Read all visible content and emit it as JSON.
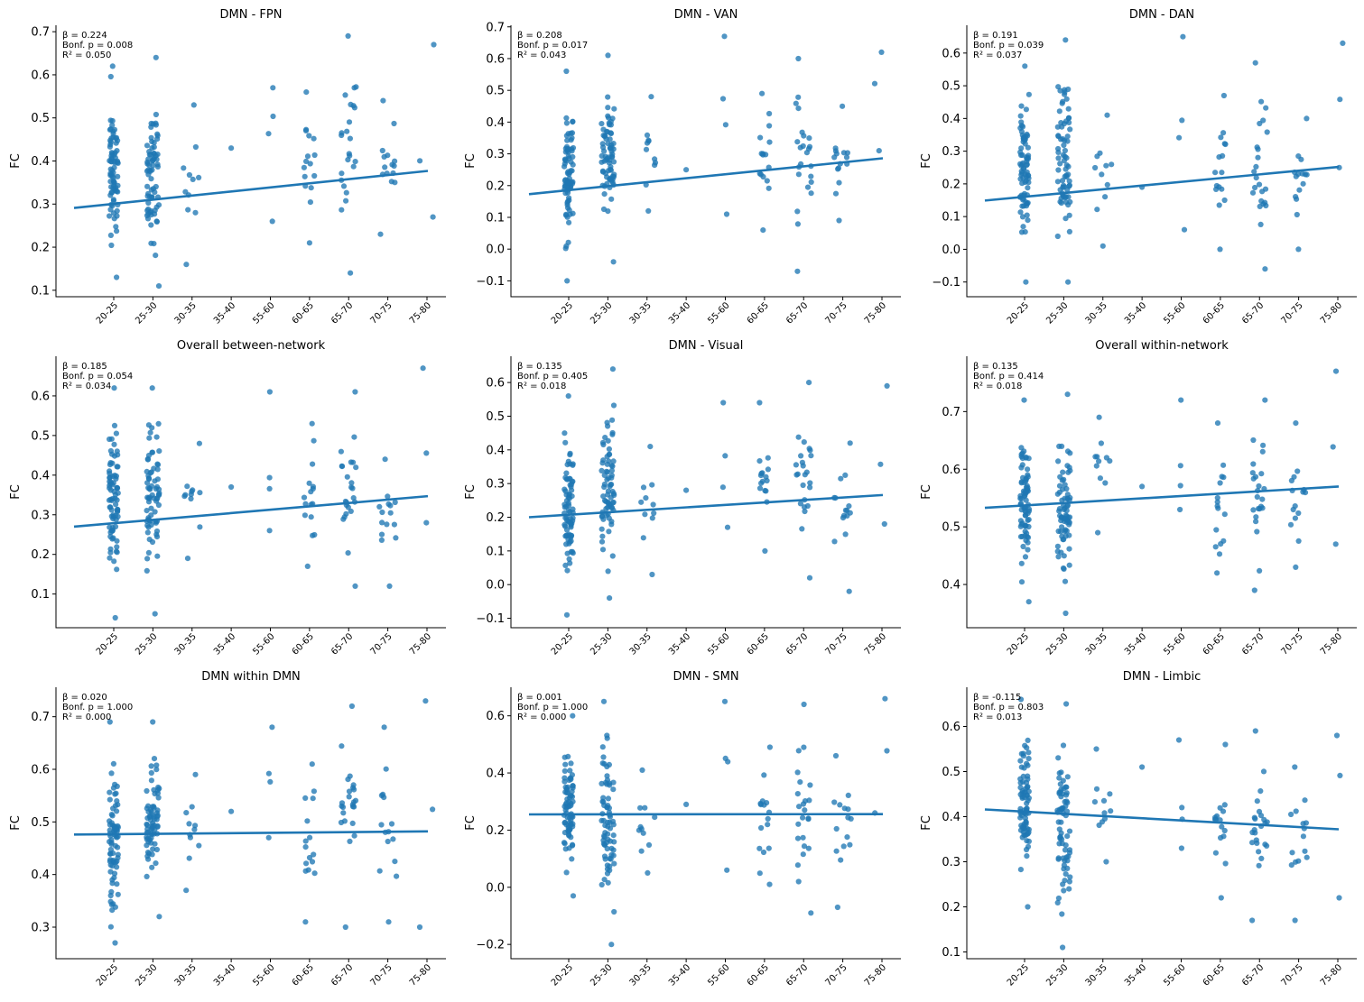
{
  "chart_data": [
    {
      "type": "scatter",
      "title": "DMN - FPN",
      "xlabel": "",
      "ylabel": "FC",
      "stats": [
        "β = 0.224",
        "Bonf. p = 0.008",
        "R² = 0.050"
      ],
      "categories": [
        "20-25",
        "25-30",
        "30-35",
        "35-40",
        "55-60",
        "60-65",
        "65-70",
        "70-75",
        "75-80"
      ],
      "ylim": [
        0.085,
        0.715
      ],
      "yticks": [
        "0.1",
        "0.2",
        "0.3",
        "0.4",
        "0.5",
        "0.6",
        "0.7"
      ],
      "fit": [
        {
          "x": "22.5",
          "y": 0.291
        },
        {
          "x": "77.5",
          "y": 0.377
        }
      ],
      "x_spread": [
        10.0,
        14.0,
        19.0,
        22.0,
        7.0,
        12.0,
        17.0,
        19.0,
        17.0
      ],
      "counts": [
        79,
        73,
        11,
        1,
        4,
        16,
        24,
        15,
        3
      ],
      "range": [
        [
          0.13,
          0.62
        ],
        [
          0.11,
          0.64
        ],
        [
          0.16,
          0.53
        ],
        [
          0.43,
          0.43
        ],
        [
          0.26,
          0.57
        ],
        [
          0.21,
          0.56
        ],
        [
          0.14,
          0.69
        ],
        [
          0.23,
          0.54
        ],
        [
          0.27,
          0.67
        ]
      ]
    },
    {
      "type": "scatter",
      "title": "DMN - VAN",
      "xlabel": "",
      "ylabel": "FC",
      "stats": [
        "β = 0.208",
        "Bonf. p = 0.017",
        "R² = 0.043"
      ],
      "categories": [
        "20-25",
        "25-30",
        "30-35",
        "35-40",
        "55-60",
        "60-65",
        "65-70",
        "70-75",
        "75-80"
      ],
      "ylim": [
        -0.15,
        0.705
      ],
      "yticks": [
        "−0.1",
        "0.0",
        "0.1",
        "0.2",
        "0.3",
        "0.4",
        "0.5",
        "0.6",
        "0.7"
      ],
      "fit": [
        {
          "x": "22.5",
          "y": 0.173
        },
        {
          "x": "77.5",
          "y": 0.286
        }
      ],
      "x_spread": [
        10.0,
        14.0,
        19.0,
        22.0,
        7.0,
        12.0,
        17.0,
        19.0,
        17.0
      ],
      "counts": [
        79,
        73,
        11,
        1,
        4,
        16,
        24,
        15,
        3
      ],
      "range": [
        [
          -0.1,
          0.56
        ],
        [
          -0.04,
          0.61
        ],
        [
          0.12,
          0.48
        ],
        [
          0.25,
          0.25
        ],
        [
          0.11,
          0.67
        ],
        [
          0.06,
          0.49
        ],
        [
          -0.07,
          0.6
        ],
        [
          0.09,
          0.45
        ],
        [
          0.31,
          0.62
        ]
      ]
    },
    {
      "type": "scatter",
      "title": "DMN - DAN",
      "xlabel": "",
      "ylabel": "FC",
      "stats": [
        "β = 0.191",
        "Bonf. p = 0.039",
        "R² = 0.037"
      ],
      "categories": [
        "20-25",
        "25-30",
        "30-35",
        "35-40",
        "55-60",
        "60-65",
        "65-70",
        "70-75",
        "75-80"
      ],
      "ylim": [
        -0.145,
        0.685
      ],
      "yticks": [
        "−0.1",
        "0.0",
        "0.1",
        "0.2",
        "0.3",
        "0.4",
        "0.5",
        "0.6"
      ],
      "fit": [
        {
          "x": "22.5",
          "y": 0.149
        },
        {
          "x": "77.5",
          "y": 0.252
        }
      ],
      "x_spread": [
        10.0,
        14.0,
        19.0,
        22.0,
        7.0,
        12.0,
        17.0,
        19.0,
        17.0
      ],
      "counts": [
        79,
        73,
        11,
        1,
        4,
        16,
        24,
        15,
        3
      ],
      "range": [
        [
          -0.1,
          0.56
        ],
        [
          -0.1,
          0.64
        ],
        [
          0.01,
          0.41
        ],
        [
          0.19,
          0.19
        ],
        [
          0.06,
          0.65
        ],
        [
          0.0,
          0.47
        ],
        [
          -0.06,
          0.57
        ],
        [
          0.0,
          0.4
        ],
        [
          0.25,
          0.63
        ]
      ]
    },
    {
      "type": "scatter",
      "title": "Overall between-network",
      "xlabel": "",
      "ylabel": "FC",
      "stats": [
        "β = 0.185",
        "Bonf. p = 0.054",
        "R² = 0.034"
      ],
      "categories": [
        "20-25",
        "25-30",
        "30-35",
        "35-40",
        "55-60",
        "60-65",
        "65-70",
        "70-75",
        "75-80"
      ],
      "ylim": [
        0.015,
        0.7
      ],
      "yticks": [
        "0.1",
        "0.2",
        "0.3",
        "0.4",
        "0.5",
        "0.6"
      ],
      "fit": [
        {
          "x": "22.5",
          "y": 0.27
        },
        {
          "x": "77.5",
          "y": 0.347
        }
      ],
      "x_spread": [
        10.0,
        14.0,
        19.0,
        22.0,
        7.0,
        12.0,
        17.0,
        19.0,
        17.0
      ],
      "counts": [
        79,
        73,
        11,
        1,
        4,
        16,
        24,
        15,
        3
      ],
      "range": [
        [
          0.04,
          0.62
        ],
        [
          0.05,
          0.62
        ],
        [
          0.19,
          0.48
        ],
        [
          0.37,
          0.37
        ],
        [
          0.26,
          0.61
        ],
        [
          0.17,
          0.53
        ],
        [
          0.12,
          0.61
        ],
        [
          0.12,
          0.44
        ],
        [
          0.28,
          0.67
        ]
      ]
    },
    {
      "type": "scatter",
      "title": "DMN - Visual",
      "xlabel": "",
      "ylabel": "FC",
      "stats": [
        "β = 0.135",
        "Bonf. p = 0.405",
        "R² = 0.018"
      ],
      "categories": [
        "20-25",
        "25-30",
        "30-35",
        "35-40",
        "55-60",
        "60-65",
        "65-70",
        "70-75",
        "75-80"
      ],
      "ylim": [
        -0.128,
        0.678
      ],
      "yticks": [
        "−0.1",
        "0.0",
        "0.1",
        "0.2",
        "0.3",
        "0.4",
        "0.5",
        "0.6"
      ],
      "fit": [
        {
          "x": "22.5",
          "y": 0.2
        },
        {
          "x": "77.5",
          "y": 0.266
        }
      ],
      "x_spread": [
        10.0,
        14.0,
        19.0,
        22.0,
        7.0,
        12.0,
        17.0,
        19.0,
        17.0
      ],
      "counts": [
        79,
        73,
        11,
        1,
        4,
        16,
        24,
        15,
        3
      ],
      "range": [
        [
          -0.09,
          0.56
        ],
        [
          -0.04,
          0.64
        ],
        [
          0.03,
          0.41
        ],
        [
          0.28,
          0.28
        ],
        [
          0.17,
          0.54
        ],
        [
          0.1,
          0.54
        ],
        [
          0.02,
          0.6
        ],
        [
          -0.02,
          0.42
        ],
        [
          0.18,
          0.59
        ]
      ]
    },
    {
      "type": "scatter",
      "title": "Overall within-network",
      "xlabel": "",
      "ylabel": "FC",
      "stats": [
        "β = 0.135",
        "Bonf. p = 0.414",
        "R² = 0.018"
      ],
      "categories": [
        "20-25",
        "25-30",
        "30-35",
        "35-40",
        "55-60",
        "60-65",
        "65-70",
        "70-75",
        "75-80"
      ],
      "ylim": [
        0.325,
        0.796
      ],
      "yticks": [
        "0.4",
        "0.5",
        "0.6",
        "0.7"
      ],
      "fit": [
        {
          "x": "22.5",
          "y": 0.533
        },
        {
          "x": "77.5",
          "y": 0.57
        }
      ],
      "x_spread": [
        10.0,
        14.0,
        19.0,
        22.0,
        7.0,
        12.0,
        17.0,
        19.0,
        17.0
      ],
      "counts": [
        79,
        73,
        11,
        1,
        4,
        16,
        24,
        15,
        3
      ],
      "range": [
        [
          0.37,
          0.72
        ],
        [
          0.35,
          0.73
        ],
        [
          0.49,
          0.69
        ],
        [
          0.57,
          0.57
        ],
        [
          0.53,
          0.72
        ],
        [
          0.42,
          0.68
        ],
        [
          0.39,
          0.72
        ],
        [
          0.43,
          0.68
        ],
        [
          0.47,
          0.77
        ]
      ]
    },
    {
      "type": "scatter",
      "title": "DMN within DMN",
      "xlabel": "",
      "ylabel": "FC",
      "stats": [
        "β = 0.020",
        "Bonf. p = 1.000",
        "R² = 0.000"
      ],
      "categories": [
        "20-25",
        "25-30",
        "30-35",
        "35-40",
        "55-60",
        "60-65",
        "65-70",
        "70-75",
        "75-80"
      ],
      "ylim": [
        0.24,
        0.756
      ],
      "yticks": [
        "0.3",
        "0.4",
        "0.5",
        "0.6",
        "0.7"
      ],
      "fit": [
        {
          "x": "22.5",
          "y": 0.476
        },
        {
          "x": "77.5",
          "y": 0.482
        }
      ],
      "x_spread": [
        10.0,
        14.0,
        19.0,
        22.0,
        7.0,
        12.0,
        17.0,
        19.0,
        17.0
      ],
      "counts": [
        79,
        73,
        11,
        1,
        4,
        16,
        24,
        15,
        3
      ],
      "range": [
        [
          0.27,
          0.69
        ],
        [
          0.32,
          0.69
        ],
        [
          0.37,
          0.59
        ],
        [
          0.52,
          0.52
        ],
        [
          0.47,
          0.68
        ],
        [
          0.31,
          0.61
        ],
        [
          0.3,
          0.72
        ],
        [
          0.31,
          0.68
        ],
        [
          0.3,
          0.73
        ]
      ]
    },
    {
      "type": "scatter",
      "title": "DMN - SMN",
      "xlabel": "",
      "ylabel": "FC",
      "stats": [
        "β = 0.001",
        "Bonf. p = 1.000",
        "R² = 0.000"
      ],
      "categories": [
        "20-25",
        "25-30",
        "30-35",
        "35-40",
        "55-60",
        "60-65",
        "65-70",
        "70-75",
        "75-80"
      ],
      "ylim": [
        -0.25,
        0.7
      ],
      "yticks": [
        "−0.2",
        "0.0",
        "0.2",
        "0.4",
        "0.6"
      ],
      "fit": [
        {
          "x": "22.5",
          "y": 0.255
        },
        {
          "x": "77.5",
          "y": 0.256
        }
      ],
      "x_spread": [
        10.0,
        14.0,
        19.0,
        22.0,
        7.0,
        12.0,
        17.0,
        19.0,
        17.0
      ],
      "counts": [
        79,
        73,
        11,
        1,
        4,
        16,
        24,
        15,
        3
      ],
      "range": [
        [
          -0.03,
          0.6
        ],
        [
          -0.2,
          0.65
        ],
        [
          0.05,
          0.41
        ],
        [
          0.29,
          0.29
        ],
        [
          0.06,
          0.65
        ],
        [
          0.01,
          0.49
        ],
        [
          -0.09,
          0.64
        ],
        [
          -0.07,
          0.46
        ],
        [
          0.26,
          0.66
        ]
      ]
    },
    {
      "type": "scatter",
      "title": "DMN - Limbic",
      "xlabel": "",
      "ylabel": "FC",
      "stats": [
        "β = -0.115",
        "Bonf. p = 0.803",
        "R² = 0.013"
      ],
      "categories": [
        "20-25",
        "25-30",
        "30-35",
        "35-40",
        "55-60",
        "60-65",
        "65-70",
        "70-75",
        "75-80"
      ],
      "ylim": [
        0.085,
        0.687
      ],
      "yticks": [
        "0.1",
        "0.2",
        "0.3",
        "0.4",
        "0.5",
        "0.6"
      ],
      "fit": [
        {
          "x": "22.5",
          "y": 0.416
        },
        {
          "x": "77.5",
          "y": 0.372
        }
      ],
      "x_spread": [
        10.0,
        14.0,
        19.0,
        22.0,
        7.0,
        12.0,
        17.0,
        19.0,
        17.0
      ],
      "counts": [
        79,
        73,
        11,
        1,
        4,
        16,
        24,
        15,
        3
      ],
      "range": [
        [
          0.2,
          0.66
        ],
        [
          0.11,
          0.65
        ],
        [
          0.3,
          0.55
        ],
        [
          0.51,
          0.51
        ],
        [
          0.33,
          0.57
        ],
        [
          0.22,
          0.56
        ],
        [
          0.17,
          0.59
        ],
        [
          0.17,
          0.51
        ],
        [
          0.22,
          0.58
        ]
      ]
    }
  ]
}
